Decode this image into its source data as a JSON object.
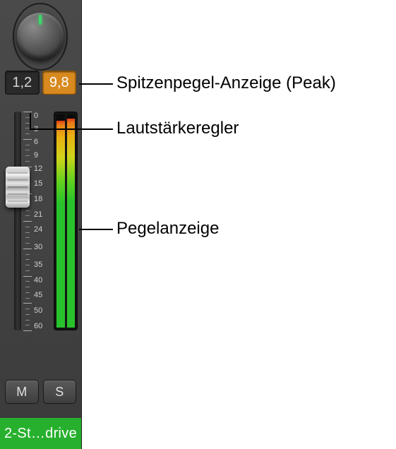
{
  "colors": {
    "strip_bg_top": "#4a4a4a",
    "strip_bg_bot": "#3b3b3b",
    "peak_pre_bg": "#2a2a2a",
    "peak_pre_color": "#d7d7d7",
    "peak_post_bg": "#d88a1f",
    "peak_post_color": "#ffffff",
    "track_bg": "#27b02d",
    "track_color": "#ffffff",
    "pan_indicator": "#3dd66a"
  },
  "pan": {
    "value_deg": 0
  },
  "peak": {
    "pre": "1,2",
    "post": "9,8"
  },
  "fader": {
    "position_pct_from_top": 25,
    "scale_ticks_major": [
      0,
      20,
      40,
      60,
      80,
      100
    ]
  },
  "meter": {
    "labels": [
      "0",
      "3",
      "6",
      "9",
      "12",
      "15",
      "18",
      "21",
      "24",
      "30",
      "35",
      "40",
      "45",
      "50",
      "60"
    ],
    "label_positions_pct": [
      2,
      8,
      14,
      20,
      26,
      33,
      40,
      47,
      54,
      62,
      70,
      77,
      84,
      91,
      98
    ],
    "left_fill_pct": 97,
    "right_fill_pct": 98
  },
  "buttons": {
    "mute": "M",
    "solo": "S"
  },
  "track": {
    "name": "2-St…drive"
  },
  "callouts": {
    "peak": "Spitzenpegel-Anzeige (Peak)",
    "fader": "Lautstärkeregler",
    "meter": "Pegelanzeige"
  }
}
